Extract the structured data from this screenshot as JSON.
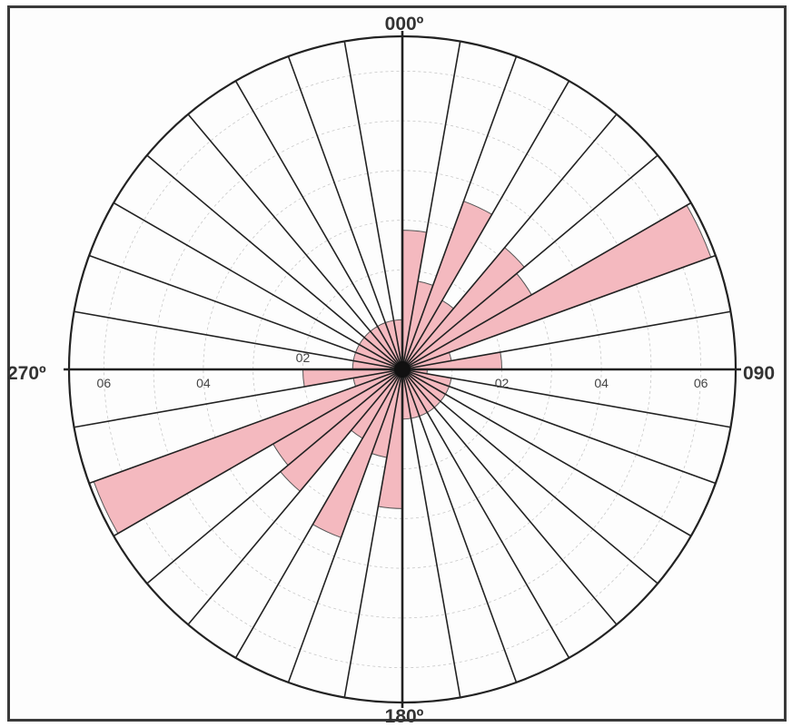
{
  "chart_data": {
    "type": "rose",
    "direction_labels": {
      "north": "000º",
      "east": "090",
      "south": "180º",
      "west": "270º"
    },
    "radial_tick_labels": [
      "02",
      "04",
      "06"
    ],
    "radial_ticks": [
      2,
      4,
      6
    ],
    "radial_max": 6.7,
    "sector_width_deg": 10,
    "sectors": [
      {
        "from": 0,
        "to": 10,
        "value": 2.8
      },
      {
        "from": 10,
        "to": 20,
        "value": 1.8
      },
      {
        "from": 20,
        "to": 30,
        "value": 3.6
      },
      {
        "from": 30,
        "to": 40,
        "value": 1.6
      },
      {
        "from": 40,
        "to": 50,
        "value": 3.2
      },
      {
        "from": 50,
        "to": 60,
        "value": 3.0
      },
      {
        "from": 60,
        "to": 70,
        "value": 6.6
      },
      {
        "from": 70,
        "to": 80,
        "value": 1.0
      },
      {
        "from": 80,
        "to": 90,
        "value": 2.0
      },
      {
        "from": 90,
        "to": 100,
        "value": 0.5
      },
      {
        "from": 100,
        "to": 110,
        "value": 1.0
      },
      {
        "from": 110,
        "to": 120,
        "value": 1.0
      },
      {
        "from": 120,
        "to": 130,
        "value": 1.0
      },
      {
        "from": 130,
        "to": 140,
        "value": 1.0
      },
      {
        "from": 140,
        "to": 150,
        "value": 1.0
      },
      {
        "from": 150,
        "to": 160,
        "value": 1.0
      },
      {
        "from": 160,
        "to": 170,
        "value": 1.0
      },
      {
        "from": 170,
        "to": 180,
        "value": 1.0
      },
      {
        "from": 180,
        "to": 190,
        "value": 2.8
      },
      {
        "from": 190,
        "to": 200,
        "value": 1.8
      },
      {
        "from": 200,
        "to": 210,
        "value": 3.6
      },
      {
        "from": 210,
        "to": 220,
        "value": 1.6
      },
      {
        "from": 220,
        "to": 230,
        "value": 3.2
      },
      {
        "from": 230,
        "to": 240,
        "value": 3.0
      },
      {
        "from": 240,
        "to": 250,
        "value": 6.6
      },
      {
        "from": 250,
        "to": 260,
        "value": 1.0
      },
      {
        "from": 260,
        "to": 270,
        "value": 2.0
      },
      {
        "from": 270,
        "to": 280,
        "value": 1.0
      },
      {
        "from": 280,
        "to": 290,
        "value": 1.0
      },
      {
        "from": 290,
        "to": 300,
        "value": 1.0
      },
      {
        "from": 300,
        "to": 310,
        "value": 1.0
      },
      {
        "from": 310,
        "to": 320,
        "value": 1.0
      },
      {
        "from": 320,
        "to": 330,
        "value": 1.0
      },
      {
        "from": 330,
        "to": 340,
        "value": 1.0
      },
      {
        "from": 340,
        "to": 350,
        "value": 1.0
      },
      {
        "from": 350,
        "to": 360,
        "value": 1.0
      }
    ],
    "petal_color": "#f4b9bf",
    "line_color": "#222222",
    "grid": true
  }
}
